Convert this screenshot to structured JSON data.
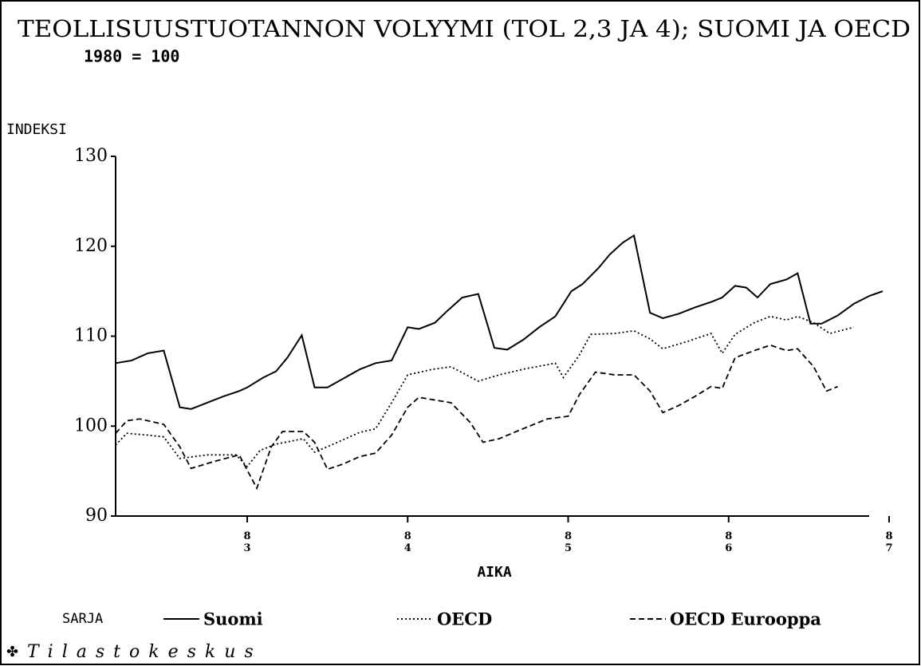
{
  "chart_data": {
    "type": "line",
    "title": "TEOLLISUUSTUOTANNON VOLYYMI (TOL 2,3 JA 4); SUOMI JA OECD",
    "subtitle": "1980 = 100",
    "y_label": "INDEKSI",
    "x_label": "AIKA",
    "legend_title": "SARJA",
    "footer": "Tilastokeskus",
    "xlim": [
      82.18,
      87.0
    ],
    "xticks": [
      83,
      84,
      85,
      86,
      87
    ],
    "ylim": [
      90,
      130
    ],
    "yticks": [
      90,
      100,
      110,
      120,
      130
    ],
    "series": [
      {
        "name": "Suomi",
        "color": "#000000",
        "dash": "solid",
        "x": [
          82.18,
          82.28,
          82.38,
          82.48,
          82.58,
          82.65,
          82.75,
          82.85,
          82.95,
          83.0,
          83.1,
          83.18,
          83.25,
          83.34,
          83.42,
          83.5,
          83.6,
          83.7,
          83.8,
          83.9,
          84.0,
          84.07,
          84.17,
          84.24,
          84.34,
          84.44,
          84.54,
          84.62,
          84.72,
          84.82,
          84.92,
          85.02,
          85.09,
          85.19,
          85.26,
          85.34,
          85.41,
          85.51,
          85.59,
          85.69,
          85.79,
          85.89,
          85.96,
          86.04,
          86.11,
          86.18,
          86.26,
          86.36,
          86.43,
          86.51,
          86.58,
          86.68,
          86.78,
          86.88,
          86.96
        ],
        "values": [
          107.0,
          107.3,
          108.1,
          108.4,
          102.1,
          101.9,
          102.6,
          103.3,
          103.9,
          104.3,
          105.4,
          106.1,
          107.6,
          110.1,
          104.3,
          104.3,
          105.3,
          106.3,
          107.0,
          107.3,
          111.0,
          110.8,
          111.5,
          112.7,
          114.3,
          114.7,
          108.7,
          108.5,
          109.6,
          111.0,
          112.2,
          115.0,
          115.8,
          117.6,
          119.1,
          120.4,
          121.2,
          112.6,
          112.0,
          112.5,
          113.2,
          113.8,
          114.3,
          115.6,
          115.4,
          114.3,
          115.8,
          116.3,
          117.0,
          111.4,
          111.4,
          112.3,
          113.6,
          114.5,
          115.0
        ]
      },
      {
        "name": "OECD",
        "color": "#000000",
        "dash": "dotted",
        "x": [
          82.18,
          82.25,
          82.38,
          82.48,
          82.58,
          82.75,
          82.93,
          83.0,
          83.08,
          83.18,
          83.35,
          83.42,
          83.55,
          83.7,
          83.8,
          83.9,
          84.0,
          84.15,
          84.27,
          84.44,
          84.57,
          84.74,
          84.92,
          84.97,
          85.07,
          85.14,
          85.29,
          85.41,
          85.51,
          85.59,
          85.74,
          85.89,
          85.96,
          86.04,
          86.16,
          86.26,
          86.36,
          86.43,
          86.53,
          86.63,
          86.78
        ],
        "values": [
          97.9,
          99.2,
          99.0,
          98.8,
          96.4,
          96.8,
          96.8,
          95.5,
          97.3,
          98.0,
          98.6,
          97.1,
          98.1,
          99.3,
          99.7,
          102.6,
          105.7,
          106.3,
          106.6,
          105.0,
          105.7,
          106.4,
          107.0,
          105.4,
          107.9,
          110.2,
          110.3,
          110.6,
          109.7,
          108.6,
          109.4,
          110.3,
          108.1,
          110.2,
          111.5,
          112.2,
          111.8,
          112.2,
          111.5,
          110.3,
          111.0
        ]
      },
      {
        "name": "OECD Eurooppa",
        "color": "#000000",
        "dash": "dashed",
        "x": [
          82.18,
          82.25,
          82.33,
          82.48,
          82.58,
          82.65,
          82.8,
          82.95,
          83.0,
          83.06,
          83.15,
          83.22,
          83.35,
          83.42,
          83.5,
          83.6,
          83.7,
          83.8,
          83.9,
          84.0,
          84.07,
          84.17,
          84.27,
          84.39,
          84.47,
          84.57,
          84.69,
          84.87,
          85.0,
          85.07,
          85.17,
          85.29,
          85.41,
          85.51,
          85.59,
          85.69,
          85.79,
          85.89,
          85.96,
          86.04,
          86.16,
          86.26,
          86.36,
          86.43,
          86.53,
          86.61,
          86.68
        ],
        "values": [
          99.2,
          100.6,
          100.8,
          100.2,
          97.7,
          95.3,
          96.1,
          96.8,
          95.1,
          93.1,
          97.7,
          99.4,
          99.4,
          98.2,
          95.2,
          95.8,
          96.6,
          97.0,
          99.0,
          102.1,
          103.2,
          102.9,
          102.6,
          100.4,
          98.2,
          98.6,
          99.5,
          100.8,
          101.1,
          103.5,
          106.0,
          105.7,
          105.7,
          103.9,
          101.5,
          102.3,
          103.3,
          104.4,
          104.2,
          107.6,
          108.4,
          109.0,
          108.4,
          108.6,
          106.6,
          103.9,
          104.4
        ]
      }
    ]
  }
}
